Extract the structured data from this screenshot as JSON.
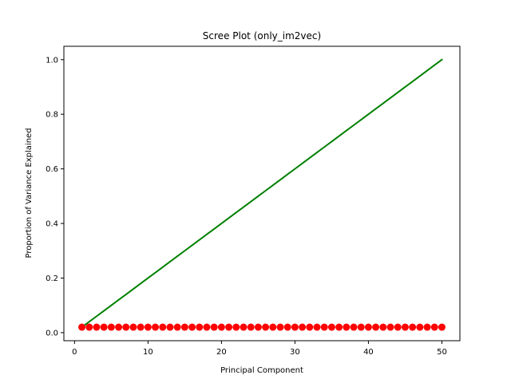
{
  "chart_data": {
    "type": "line",
    "title": "Scree Plot (only_im2vec)",
    "xlabel": "Principal Component",
    "ylabel": "Proportion of Variance Explained",
    "xlim": [
      -1.45,
      52.45
    ],
    "ylim": [
      -0.0295,
      1.049
    ],
    "xticks": [
      0,
      10,
      20,
      30,
      40,
      50
    ],
    "yticks": [
      0.0,
      0.2,
      0.4,
      0.6,
      0.8,
      1.0
    ],
    "ytick_labels": [
      "0.0",
      "0.2",
      "0.4",
      "0.6",
      "0.8",
      "1.0"
    ],
    "grid": false,
    "x": [
      1,
      2,
      3,
      4,
      5,
      6,
      7,
      8,
      9,
      10,
      11,
      12,
      13,
      14,
      15,
      16,
      17,
      18,
      19,
      20,
      21,
      22,
      23,
      24,
      25,
      26,
      27,
      28,
      29,
      30,
      31,
      32,
      33,
      34,
      35,
      36,
      37,
      38,
      39,
      40,
      41,
      42,
      43,
      44,
      45,
      46,
      47,
      48,
      49,
      50
    ],
    "series": [
      {
        "style": "points",
        "color": "#ff0000",
        "values": [
          0.02,
          0.02,
          0.02,
          0.02,
          0.02,
          0.02,
          0.02,
          0.02,
          0.02,
          0.02,
          0.02,
          0.02,
          0.02,
          0.02,
          0.02,
          0.02,
          0.02,
          0.02,
          0.02,
          0.02,
          0.02,
          0.02,
          0.02,
          0.02,
          0.02,
          0.02,
          0.02,
          0.02,
          0.02,
          0.02,
          0.02,
          0.02,
          0.02,
          0.02,
          0.02,
          0.02,
          0.02,
          0.02,
          0.02,
          0.02,
          0.02,
          0.02,
          0.02,
          0.02,
          0.02,
          0.02,
          0.02,
          0.02,
          0.02,
          0.02
        ]
      },
      {
        "style": "line",
        "color": "#008000",
        "values": [
          0.02,
          0.04,
          0.06,
          0.08,
          0.1,
          0.12,
          0.14,
          0.16,
          0.18,
          0.2,
          0.22,
          0.24,
          0.26,
          0.28,
          0.3,
          0.32,
          0.34,
          0.36,
          0.38,
          0.4,
          0.42,
          0.44,
          0.46,
          0.48,
          0.5,
          0.52,
          0.54,
          0.56,
          0.58,
          0.6,
          0.62,
          0.64,
          0.66,
          0.68,
          0.7,
          0.72,
          0.74,
          0.76,
          0.78,
          0.8,
          0.82,
          0.84,
          0.86,
          0.88,
          0.9,
          0.92,
          0.94,
          0.96,
          0.98,
          1.0
        ]
      }
    ]
  }
}
